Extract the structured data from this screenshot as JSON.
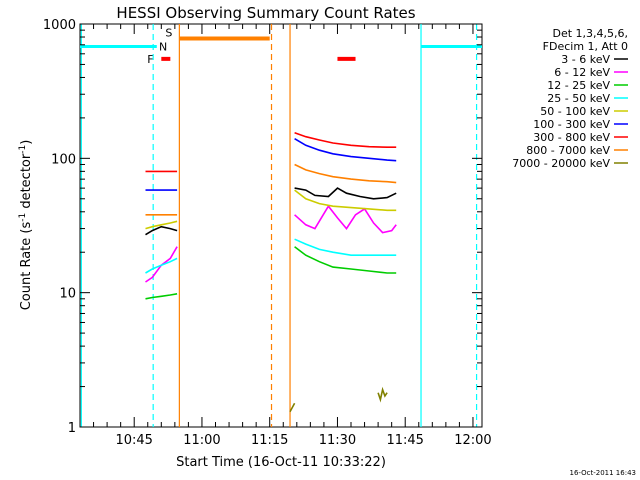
{
  "chart_data": {
    "type": "line",
    "title": "HESSI Observing Summary Count Rates",
    "xlabel": "Start Time (16-Oct-11 10:33:22)",
    "ylabel_main": "Count Rate (s",
    "ylabel_sup1": "-1",
    "ylabel_mid": " detector",
    "ylabel_sup2": "-1",
    "ylabel_end": ")",
    "y_scale": "log",
    "ylim": [
      1,
      1000
    ],
    "xlim_minutes": [
      0,
      89
    ],
    "x_ticks": [
      {
        "t": 12,
        "label": "10:45"
      },
      {
        "t": 27,
        "label": "11:00"
      },
      {
        "t": 42,
        "label": "11:15"
      },
      {
        "t": 57,
        "label": "11:30"
      },
      {
        "t": 72,
        "label": "11:45"
      },
      {
        "t": 87,
        "label": "12:00"
      }
    ],
    "y_ticks": [
      {
        "v": 1,
        "label": "1"
      },
      {
        "v": 10,
        "label": "10"
      },
      {
        "v": 100,
        "label": "100"
      },
      {
        "v": 1000,
        "label": "1000"
      }
    ],
    "legend_header": [
      "Det 1,3,4,5,6,",
      "FDecim 1, Att 0"
    ],
    "series": [
      {
        "name": "3 - 6 keV",
        "color": "#000000",
        "segments": [
          [
            [
              14.5,
              27
            ],
            [
              16,
              29
            ],
            [
              18,
              31
            ],
            [
              20,
              30
            ],
            [
              21.5,
              29
            ]
          ],
          [
            [
              47.5,
              60
            ],
            [
              50,
              58
            ],
            [
              52,
              53
            ],
            [
              55,
              52
            ],
            [
              57,
              60
            ],
            [
              59,
              55
            ],
            [
              62,
              52
            ],
            [
              65,
              50
            ],
            [
              68,
              51
            ],
            [
              70,
              55
            ]
          ]
        ]
      },
      {
        "name": "6 - 12 keV",
        "color": "#ff00ff",
        "segments": [
          [
            [
              14.5,
              12
            ],
            [
              16,
              13
            ],
            [
              18,
              16
            ],
            [
              20,
              18
            ],
            [
              21.5,
              22
            ]
          ],
          [
            [
              47.5,
              38
            ],
            [
              50,
              32
            ],
            [
              52,
              30
            ],
            [
              55,
              44
            ],
            [
              57,
              36
            ],
            [
              59,
              30
            ],
            [
              61,
              38
            ],
            [
              63,
              42
            ],
            [
              65,
              33
            ],
            [
              67,
              28
            ],
            [
              69,
              29
            ],
            [
              70,
              32
            ]
          ]
        ]
      },
      {
        "name": "12 - 25 keV",
        "color": "#00cc00",
        "segments": [
          [
            [
              14.5,
              9
            ],
            [
              16,
              9.2
            ],
            [
              18,
              9.4
            ],
            [
              20,
              9.6
            ],
            [
              21.5,
              9.8
            ]
          ],
          [
            [
              47.5,
              22
            ],
            [
              50,
              19
            ],
            [
              53,
              17
            ],
            [
              56,
              15.5
            ],
            [
              60,
              15
            ],
            [
              64,
              14.5
            ],
            [
              68,
              14
            ],
            [
              70,
              14
            ]
          ]
        ]
      },
      {
        "name": "25 - 50 keV",
        "color": "#00ffff",
        "segments": [
          [
            [
              14.5,
              14
            ],
            [
              16,
              15
            ],
            [
              18,
              16
            ],
            [
              20,
              17
            ],
            [
              21.5,
              18
            ]
          ],
          [
            [
              47.5,
              25
            ],
            [
              50,
              23
            ],
            [
              53,
              21
            ],
            [
              56,
              20
            ],
            [
              60,
              19
            ],
            [
              64,
              19
            ],
            [
              68,
              19
            ],
            [
              70,
              19
            ]
          ]
        ]
      },
      {
        "name": "50 - 100 keV",
        "color": "#cccc00",
        "segments": [
          [
            [
              14.5,
              30
            ],
            [
              16,
              31
            ],
            [
              18,
              32
            ],
            [
              20,
              33
            ],
            [
              21.5,
              34
            ]
          ],
          [
            [
              47.5,
              58
            ],
            [
              50,
              50
            ],
            [
              53,
              46
            ],
            [
              56,
              44
            ],
            [
              60,
              43
            ],
            [
              64,
              42
            ],
            [
              68,
              41
            ],
            [
              70,
              41
            ]
          ]
        ]
      },
      {
        "name": "100 - 300 keV",
        "color": "#0000ff",
        "segments": [
          [
            [
              14.5,
              58
            ],
            [
              16,
              58
            ],
            [
              18,
              58
            ],
            [
              20,
              58
            ],
            [
              21.5,
              58
            ]
          ],
          [
            [
              47.5,
              140
            ],
            [
              50,
              125
            ],
            [
              53,
              115
            ],
            [
              56,
              108
            ],
            [
              60,
              103
            ],
            [
              64,
              100
            ],
            [
              68,
              97
            ],
            [
              70,
              96
            ]
          ]
        ]
      },
      {
        "name": "300 - 800 keV",
        "color": "#ff0000",
        "segments": [
          [
            [
              14.5,
              80
            ],
            [
              16,
              80
            ],
            [
              18,
              80
            ],
            [
              20,
              80
            ],
            [
              21.5,
              80
            ]
          ],
          [
            [
              47.5,
              155
            ],
            [
              50,
              145
            ],
            [
              53,
              137
            ],
            [
              56,
              130
            ],
            [
              60,
              125
            ],
            [
              64,
              122
            ],
            [
              68,
              121
            ],
            [
              70,
              121
            ]
          ]
        ]
      },
      {
        "name": "800 - 7000 keV",
        "color": "#ff8000",
        "segments": [
          [
            [
              14.5,
              38
            ],
            [
              16,
              38
            ],
            [
              18,
              38
            ],
            [
              20,
              38
            ],
            [
              21.5,
              38
            ]
          ],
          [
            [
              47.5,
              90
            ],
            [
              50,
              82
            ],
            [
              53,
              77
            ],
            [
              56,
              73
            ],
            [
              60,
              70
            ],
            [
              64,
              68
            ],
            [
              68,
              67
            ],
            [
              70,
              66
            ]
          ]
        ]
      },
      {
        "name": "7000 - 20000 keV",
        "color": "#808000",
        "segments": [
          [
            [
              46.5,
              1.3
            ],
            [
              47.5,
              1.5
            ]
          ],
          [
            [
              66,
              1.8
            ],
            [
              66.5,
              1.6
            ],
            [
              67,
              1.9
            ],
            [
              67.5,
              1.7
            ],
            [
              68,
              1.8
            ]
          ]
        ]
      }
    ],
    "flags": {
      "saa": {
        "label": "",
        "color": "#00ffff",
        "value": 680,
        "segments": [
          [
            0,
            17
          ],
          [
            75.5,
            89
          ]
        ]
      },
      "night": {
        "label": "N",
        "color": "#00bfff",
        "value": 680,
        "x": 17.5
      },
      "flare": {
        "label": "F",
        "color": "#ff0000",
        "value": 550,
        "segments": [
          [
            18,
            20
          ],
          [
            57,
            61
          ]
        ]
      },
      "attenuator": {
        "label": "S",
        "color": "#ff8000",
        "value": 780,
        "segments": [
          [
            22,
            42
          ]
        ]
      }
    },
    "vertical_lines": [
      {
        "t": 0.3,
        "color": "#00ffff",
        "style": "solid"
      },
      {
        "t": 16.2,
        "color": "#00ffff",
        "style": "dashed"
      },
      {
        "t": 22,
        "color": "#ff8000",
        "style": "solid"
      },
      {
        "t": 42.4,
        "color": "#ff8000",
        "style": "dashed"
      },
      {
        "t": 46.5,
        "color": "#ff8000",
        "style": "solid"
      },
      {
        "t": 75.5,
        "color": "#00ffff",
        "style": "solid"
      },
      {
        "t": 87.8,
        "color": "#00ffff",
        "style": "dashed"
      }
    ],
    "annotation_bottom_right": "16-Oct-2011 16:43"
  }
}
